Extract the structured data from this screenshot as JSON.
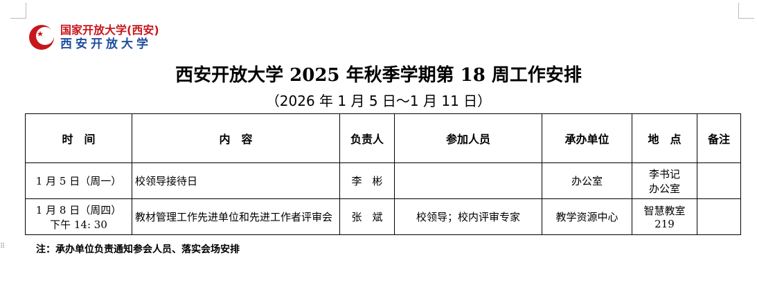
{
  "logo": {
    "line1": "国家开放大学(西安)",
    "line2": "西安开放大学"
  },
  "title": "西安开放大学 2025 年秋季学期第 18 周工作安排",
  "subtitle": "（2026 年 1 月 5 日～1 月 11 日）",
  "table": {
    "headers": [
      "时　间",
      "内　容",
      "负责人",
      "参加人员",
      "承办单位",
      "地　点",
      "备注"
    ],
    "rows": [
      {
        "time": "1 月 5 日（周一）",
        "time2": "",
        "content": "校领导接待日",
        "owner": "李　彬",
        "participants": "",
        "organizer": "办公室",
        "location": "李书记\n办公室",
        "remark": ""
      },
      {
        "time": "1 月 8 日（周四）",
        "time2": "下午 14: 30",
        "content": "教材管理工作先进单位和先进工作者评审会",
        "owner": "张　斌",
        "participants": "校领导；校内评审专家",
        "organizer": "教学资源中心",
        "location": "智慧教室\n219",
        "remark": ""
      }
    ]
  },
  "note": "注：承办单位负责通知参会人员、落实会场安排",
  "colors": {
    "logo_red": "#c8161d",
    "logo_blue": "#1f4e9c"
  }
}
